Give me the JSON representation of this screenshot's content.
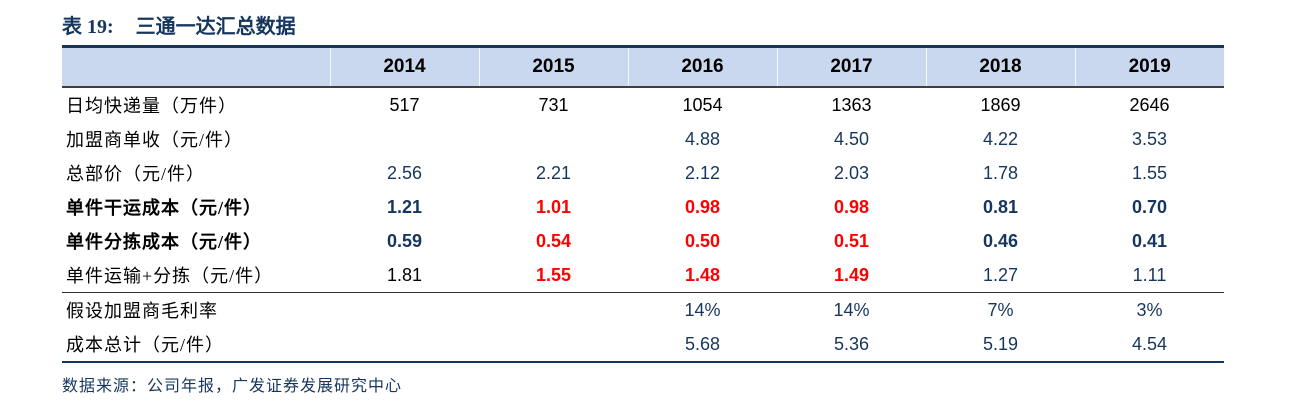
{
  "title": {
    "prefix": "表 19:",
    "text": "三通一达汇总数据"
  },
  "source_note": "数据来源：公司年报，广发证券发展研究中心",
  "colors": {
    "navy": "#17365d",
    "red": "#ff0000",
    "black": "#000000",
    "header_bg": "#c9d8ef",
    "header_rule": "#3f3f3f"
  },
  "chart_data": {
    "type": "table",
    "title": "表 19: 三通一达汇总数据",
    "columns": [
      "2014",
      "2015",
      "2016",
      "2017",
      "2018",
      "2019"
    ],
    "rows": [
      {
        "label": "日均快递量（万件）",
        "label_bold": false,
        "divider_before": false,
        "cells": [
          {
            "v": "517",
            "c": "black",
            "b": false
          },
          {
            "v": "731",
            "c": "black",
            "b": false
          },
          {
            "v": "1054",
            "c": "black",
            "b": false
          },
          {
            "v": "1363",
            "c": "black",
            "b": false
          },
          {
            "v": "1869",
            "c": "black",
            "b": false
          },
          {
            "v": "2646",
            "c": "black",
            "b": false
          }
        ]
      },
      {
        "label": "加盟商单收（元/件）",
        "label_bold": false,
        "divider_before": false,
        "cells": [
          {
            "v": "",
            "c": "navy",
            "b": false
          },
          {
            "v": "",
            "c": "navy",
            "b": false
          },
          {
            "v": "4.88",
            "c": "navy",
            "b": false
          },
          {
            "v": "4.50",
            "c": "navy",
            "b": false
          },
          {
            "v": "4.22",
            "c": "navy",
            "b": false
          },
          {
            "v": "3.53",
            "c": "navy",
            "b": false
          }
        ]
      },
      {
        "label": "总部价（元/件）",
        "label_bold": false,
        "divider_before": false,
        "cells": [
          {
            "v": "2.56",
            "c": "navy",
            "b": false
          },
          {
            "v": "2.21",
            "c": "navy",
            "b": false
          },
          {
            "v": "2.12",
            "c": "navy",
            "b": false
          },
          {
            "v": "2.03",
            "c": "navy",
            "b": false
          },
          {
            "v": "1.78",
            "c": "navy",
            "b": false
          },
          {
            "v": "1.55",
            "c": "navy",
            "b": false
          }
        ]
      },
      {
        "label": "单件干运成本（元/件）",
        "label_bold": true,
        "divider_before": false,
        "cells": [
          {
            "v": "1.21",
            "c": "navy",
            "b": true
          },
          {
            "v": "1.01",
            "c": "red",
            "b": true
          },
          {
            "v": "0.98",
            "c": "red",
            "b": true
          },
          {
            "v": "0.98",
            "c": "red",
            "b": true
          },
          {
            "v": "0.81",
            "c": "navy",
            "b": true
          },
          {
            "v": "0.70",
            "c": "navy",
            "b": true
          }
        ]
      },
      {
        "label": "单件分拣成本（元/件）",
        "label_bold": true,
        "divider_before": false,
        "cells": [
          {
            "v": "0.59",
            "c": "navy",
            "b": true
          },
          {
            "v": "0.54",
            "c": "red",
            "b": true
          },
          {
            "v": "0.50",
            "c": "red",
            "b": true
          },
          {
            "v": "0.51",
            "c": "red",
            "b": true
          },
          {
            "v": "0.46",
            "c": "navy",
            "b": true
          },
          {
            "v": "0.41",
            "c": "navy",
            "b": true
          }
        ]
      },
      {
        "label": "单件运输+分拣（元/件）",
        "label_bold": false,
        "divider_before": false,
        "cells": [
          {
            "v": "1.81",
            "c": "black",
            "b": false
          },
          {
            "v": "1.55",
            "c": "red",
            "b": true
          },
          {
            "v": "1.48",
            "c": "red",
            "b": true
          },
          {
            "v": "1.49",
            "c": "red",
            "b": true
          },
          {
            "v": "1.27",
            "c": "navy",
            "b": false
          },
          {
            "v": "1.11",
            "c": "navy",
            "b": false
          }
        ]
      },
      {
        "label": "假设加盟商毛利率",
        "label_bold": false,
        "divider_before": true,
        "cells": [
          {
            "v": "",
            "c": "navy",
            "b": false
          },
          {
            "v": "",
            "c": "navy",
            "b": false
          },
          {
            "v": "14%",
            "c": "navy",
            "b": false
          },
          {
            "v": "14%",
            "c": "navy",
            "b": false
          },
          {
            "v": "7%",
            "c": "navy",
            "b": false
          },
          {
            "v": "3%",
            "c": "navy",
            "b": false
          }
        ]
      },
      {
        "label": "成本总计（元/件）",
        "label_bold": false,
        "divider_before": false,
        "cells": [
          {
            "v": "",
            "c": "navy",
            "b": false
          },
          {
            "v": "",
            "c": "navy",
            "b": false
          },
          {
            "v": "5.68",
            "c": "navy",
            "b": false
          },
          {
            "v": "5.36",
            "c": "navy",
            "b": false
          },
          {
            "v": "5.19",
            "c": "navy",
            "b": false
          },
          {
            "v": "4.54",
            "c": "navy",
            "b": false
          }
        ]
      }
    ]
  }
}
